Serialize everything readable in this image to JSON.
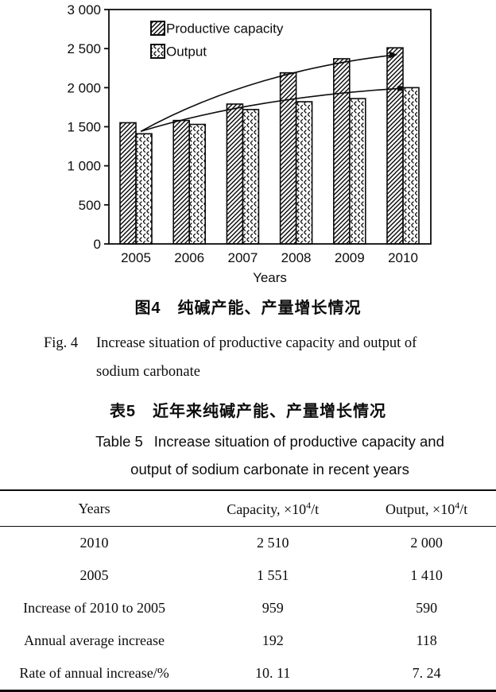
{
  "chart_data": {
    "type": "bar",
    "title": "",
    "xlabel": "Years",
    "ylabel": "",
    "ylim": [
      0,
      3000
    ],
    "ytick_step": 500,
    "ytick_labels": [
      "0",
      "500",
      "1 000",
      "1 500",
      "2 000",
      "2 500",
      "3 000"
    ],
    "grid": false,
    "legend_position": "top-left-inside",
    "categories": [
      "2005",
      "2006",
      "2007",
      "2008",
      "2009",
      "2010"
    ],
    "series": [
      {
        "name": "Productive capacity",
        "pattern": "diagonal-hatch",
        "values": [
          1551,
          1580,
          1790,
          2190,
          2370,
          2510
        ]
      },
      {
        "name": "Output",
        "pattern": "cross-hatch",
        "values": [
          1410,
          1530,
          1720,
          1820,
          1860,
          2000
        ]
      }
    ],
    "trend_curves": [
      {
        "series": "Productive capacity",
        "from_value": 1440,
        "to_value": 2420,
        "end_marker": "arrow"
      },
      {
        "series": "Output",
        "from_value": 1440,
        "to_value": 1990,
        "end_marker": "square"
      }
    ]
  },
  "figure_caption": {
    "zh": "图4　纯碱产能、产量增长情况",
    "en_label": "Fig. 4",
    "en_lines": [
      "Increase situation of productive capacity and output of",
      "sodium carbonate"
    ]
  },
  "table_caption": {
    "zh": "表5　近年来纯碱产能、产量增长情况",
    "en_label": "Table 5",
    "en_lines": [
      "Increase situation of productive capacity and",
      "output of sodium carbonate in recent years"
    ]
  },
  "table": {
    "columns": [
      {
        "text": "Years",
        "sup": "",
        "tail": ""
      },
      {
        "text": "Capacity, ×10",
        "sup": "4",
        "tail": "/t"
      },
      {
        "text": "Output, ×10",
        "sup": "4",
        "tail": "/t"
      }
    ],
    "rows": [
      [
        "2010",
        "2 510",
        "2 000"
      ],
      [
        "2005",
        "1 551",
        "1 410"
      ],
      [
        "Increase of 2010 to 2005",
        "959",
        "590"
      ],
      [
        "Annual average increase",
        "192",
        "118"
      ],
      [
        "Rate of annual increase/%",
        "10. 11",
        "7. 24"
      ]
    ]
  }
}
